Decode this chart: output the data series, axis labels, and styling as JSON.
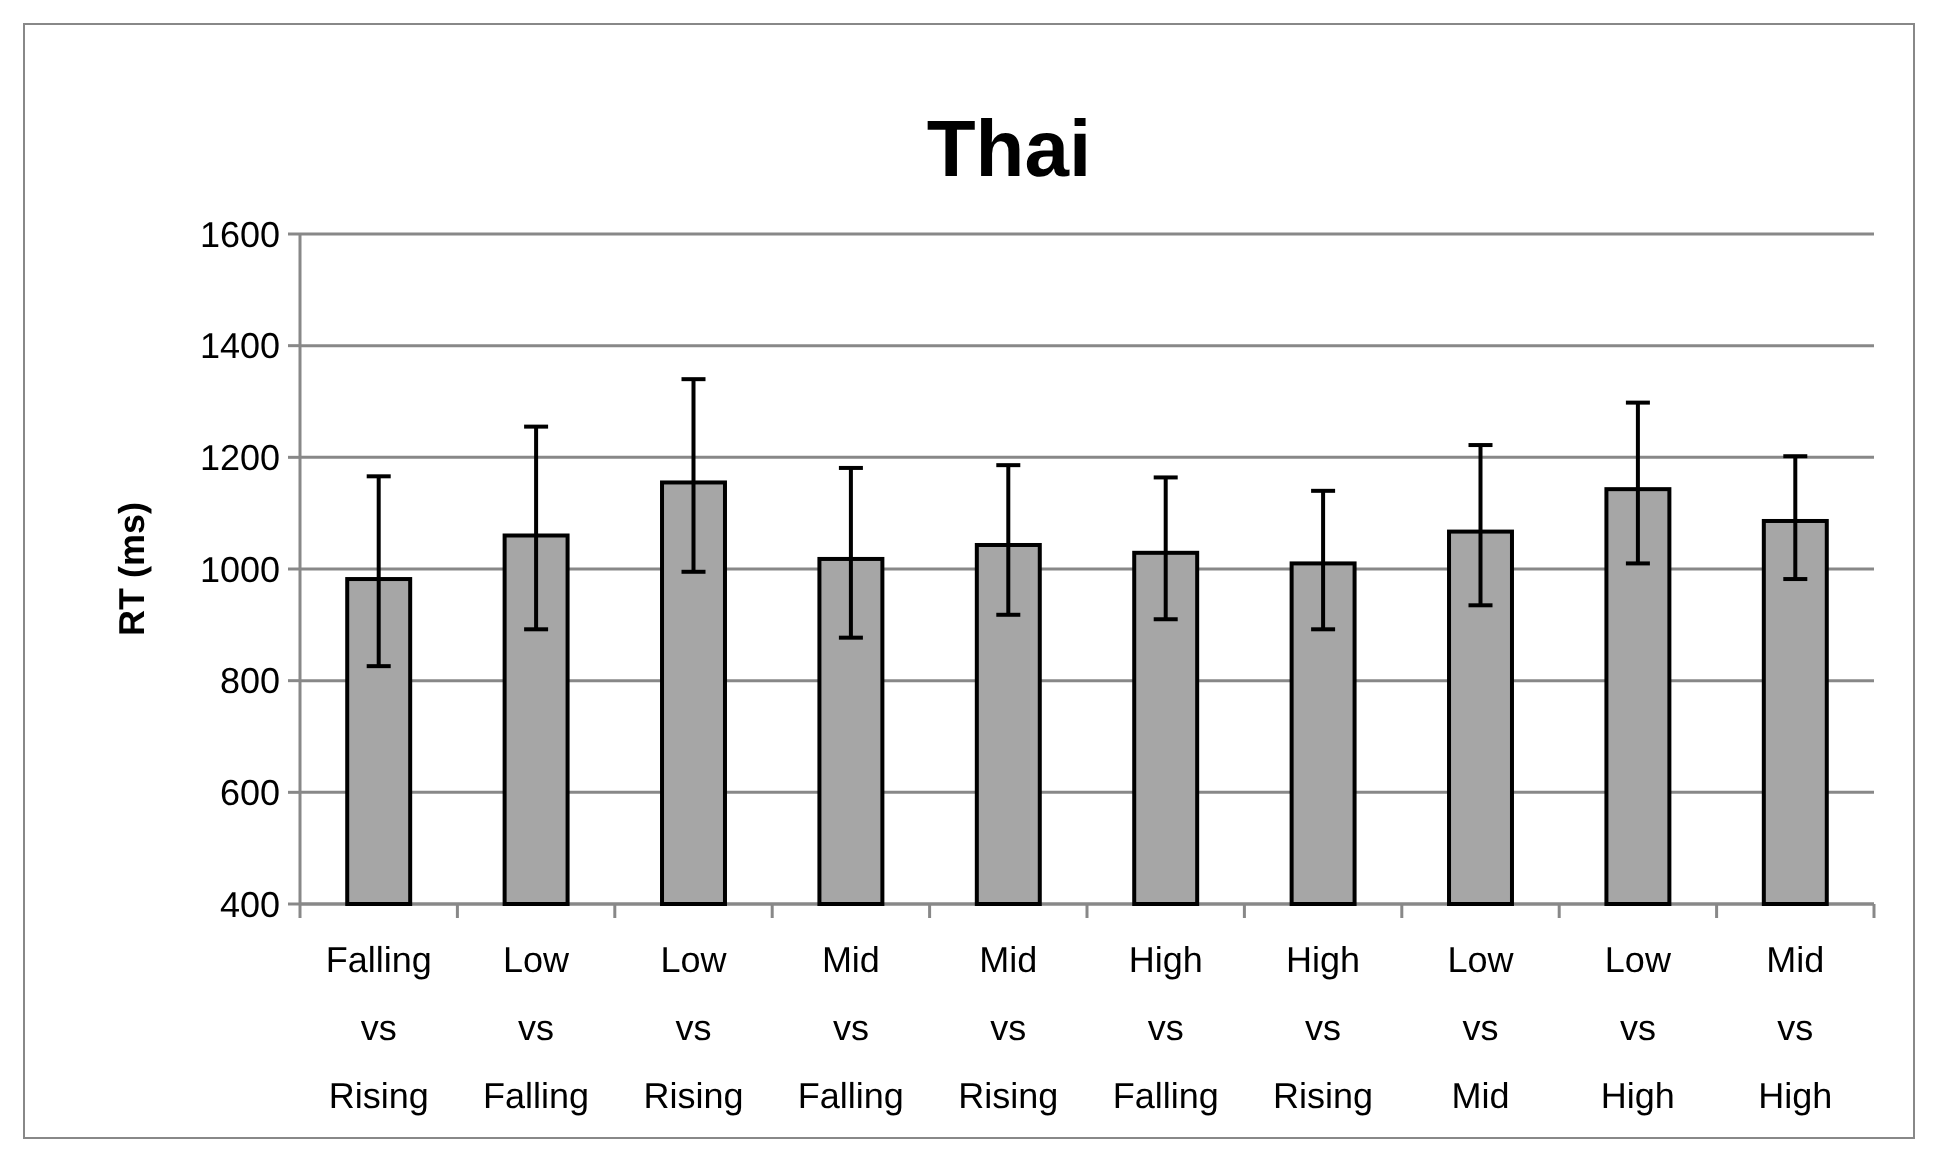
{
  "chart_data": {
    "type": "bar",
    "title": "Thai",
    "ylabel": "RT (ms)",
    "categories": [
      "Falling vs Rising",
      "Low vs Falling",
      "Low vs Rising",
      "Mid vs Falling",
      "Mid vs Rising",
      "High vs Falling",
      "High vs Rising",
      "Low vs Mid",
      "Low vs High",
      "Mid vs High"
    ],
    "values": [
      982,
      1060,
      1155,
      1018,
      1043,
      1029,
      1010,
      1067,
      1143,
      1086
    ],
    "errors": [
      [
        826,
        1166
      ],
      [
        892,
        1255
      ],
      [
        995,
        1340
      ],
      [
        877,
        1181
      ],
      [
        918,
        1186
      ],
      [
        910,
        1164
      ],
      [
        892,
        1140
      ],
      [
        935,
        1222
      ],
      [
        1010,
        1298
      ],
      [
        982,
        1202
      ]
    ],
    "color": "#a6a6a6",
    "ylim": [
      400,
      1600
    ],
    "yticks": [
      400,
      600,
      800,
      1000,
      1200,
      1400,
      1600
    ],
    "grid": "y"
  }
}
